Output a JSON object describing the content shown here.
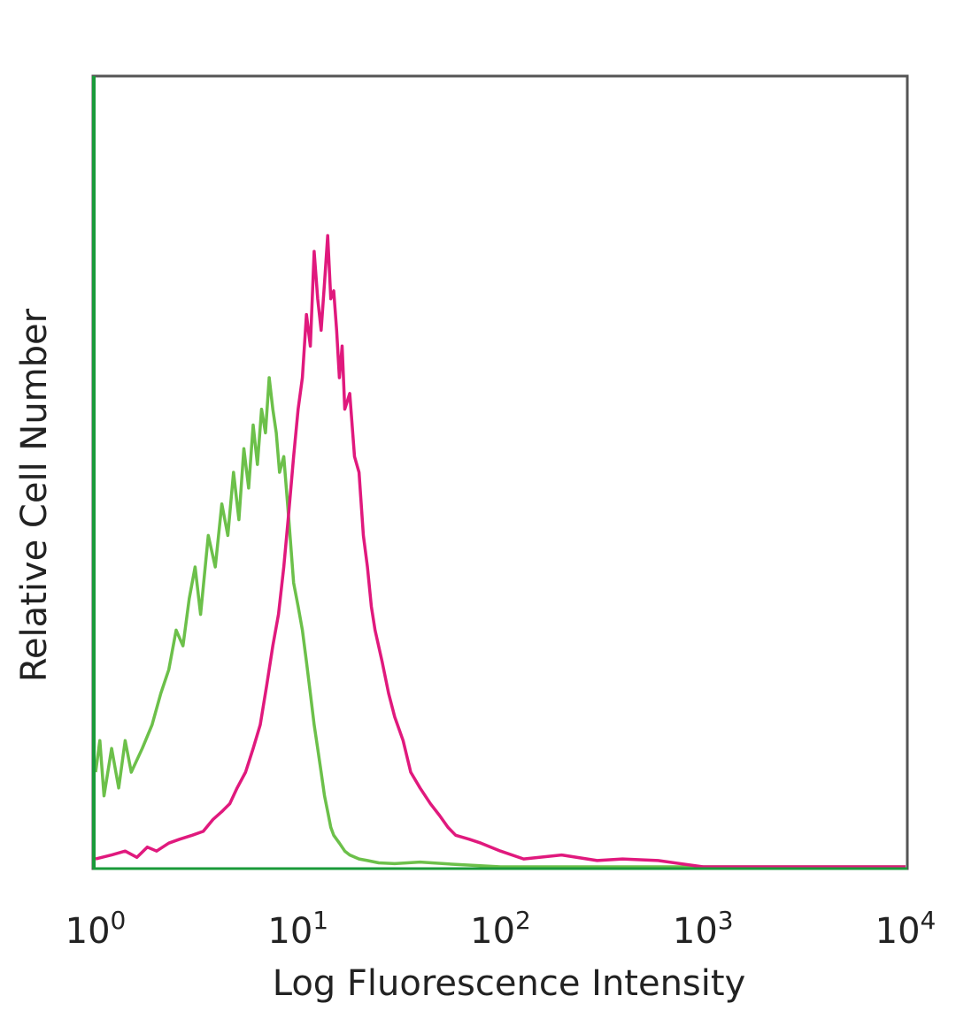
{
  "chart_data": {
    "type": "line",
    "title": "",
    "xlabel": "Log Fluorescence Intensity",
    "ylabel": "Relative Cell Number",
    "xscale": "log",
    "xlim": [
      1,
      10000
    ],
    "ylim": [
      0,
      1
    ],
    "grid": false,
    "x_ticks": [
      {
        "base": "10",
        "exp": "0",
        "value": 1
      },
      {
        "base": "10",
        "exp": "1",
        "value": 10
      },
      {
        "base": "10",
        "exp": "2",
        "value": 100
      },
      {
        "base": "10",
        "exp": "3",
        "value": 1000
      },
      {
        "base": "10",
        "exp": "4",
        "value": 10000
      }
    ],
    "series": [
      {
        "color": "#6cc04a",
        "x": [
          1.0,
          1.05,
          1.1,
          1.2,
          1.3,
          1.4,
          1.5,
          1.7,
          1.9,
          2.1,
          2.3,
          2.5,
          2.7,
          2.9,
          3.1,
          3.3,
          3.6,
          3.9,
          4.2,
          4.5,
          4.8,
          5.1,
          5.4,
          5.7,
          6.0,
          6.3,
          6.6,
          6.9,
          7.2,
          7.5,
          7.8,
          8.1,
          8.5,
          9.0,
          9.5,
          10.0,
          10.5,
          11.0,
          11.5,
          12.0,
          12.5,
          13.0,
          13.5,
          14.0,
          14.5,
          15.0,
          16.0,
          17.0,
          18.0,
          20.0,
          22.0,
          25.0,
          30.0,
          40.0,
          60.0,
          100.0,
          200.0,
          10000.0
        ],
        "y": [
          0.12,
          0.16,
          0.09,
          0.15,
          0.1,
          0.16,
          0.12,
          0.15,
          0.18,
          0.22,
          0.25,
          0.3,
          0.28,
          0.34,
          0.38,
          0.32,
          0.42,
          0.38,
          0.46,
          0.42,
          0.5,
          0.44,
          0.53,
          0.48,
          0.56,
          0.51,
          0.58,
          0.55,
          0.62,
          0.58,
          0.55,
          0.5,
          0.52,
          0.44,
          0.36,
          0.33,
          0.3,
          0.26,
          0.22,
          0.18,
          0.15,
          0.12,
          0.09,
          0.07,
          0.05,
          0.04,
          0.03,
          0.02,
          0.015,
          0.01,
          0.008,
          0.005,
          0.004,
          0.006,
          0.003,
          0.0,
          0.0,
          0.0
        ]
      },
      {
        "color": "#e0197d",
        "x": [
          1.0,
          1.2,
          1.4,
          1.6,
          1.8,
          2.0,
          2.3,
          2.6,
          3.0,
          3.4,
          3.8,
          4.2,
          4.6,
          5.0,
          5.5,
          6.0,
          6.5,
          7.0,
          7.5,
          8.0,
          8.5,
          9.0,
          9.5,
          10.0,
          10.5,
          11.0,
          11.5,
          12.0,
          12.5,
          13.0,
          13.5,
          14.0,
          14.5,
          15.0,
          15.5,
          16.0,
          16.5,
          17.0,
          18.0,
          19.0,
          20.0,
          21.0,
          22.0,
          23.0,
          24.0,
          26.0,
          28.0,
          30.0,
          33.0,
          36.0,
          40.0,
          45.0,
          50.0,
          55.0,
          60.0,
          70.0,
          80.0,
          100.0,
          130.0,
          200.0,
          300.0,
          400.0,
          600.0,
          1000.0,
          10000.0
        ],
        "y": [
          0.01,
          0.015,
          0.02,
          0.012,
          0.025,
          0.02,
          0.03,
          0.035,
          0.04,
          0.045,
          0.06,
          0.07,
          0.08,
          0.1,
          0.12,
          0.15,
          0.18,
          0.23,
          0.28,
          0.32,
          0.38,
          0.45,
          0.52,
          0.58,
          0.62,
          0.7,
          0.66,
          0.78,
          0.72,
          0.68,
          0.74,
          0.8,
          0.72,
          0.73,
          0.68,
          0.62,
          0.66,
          0.58,
          0.6,
          0.52,
          0.5,
          0.42,
          0.38,
          0.33,
          0.3,
          0.26,
          0.22,
          0.19,
          0.16,
          0.12,
          0.1,
          0.08,
          0.065,
          0.05,
          0.04,
          0.035,
          0.03,
          0.02,
          0.01,
          0.015,
          0.008,
          0.01,
          0.008,
          0.0,
          0.0
        ]
      }
    ]
  }
}
